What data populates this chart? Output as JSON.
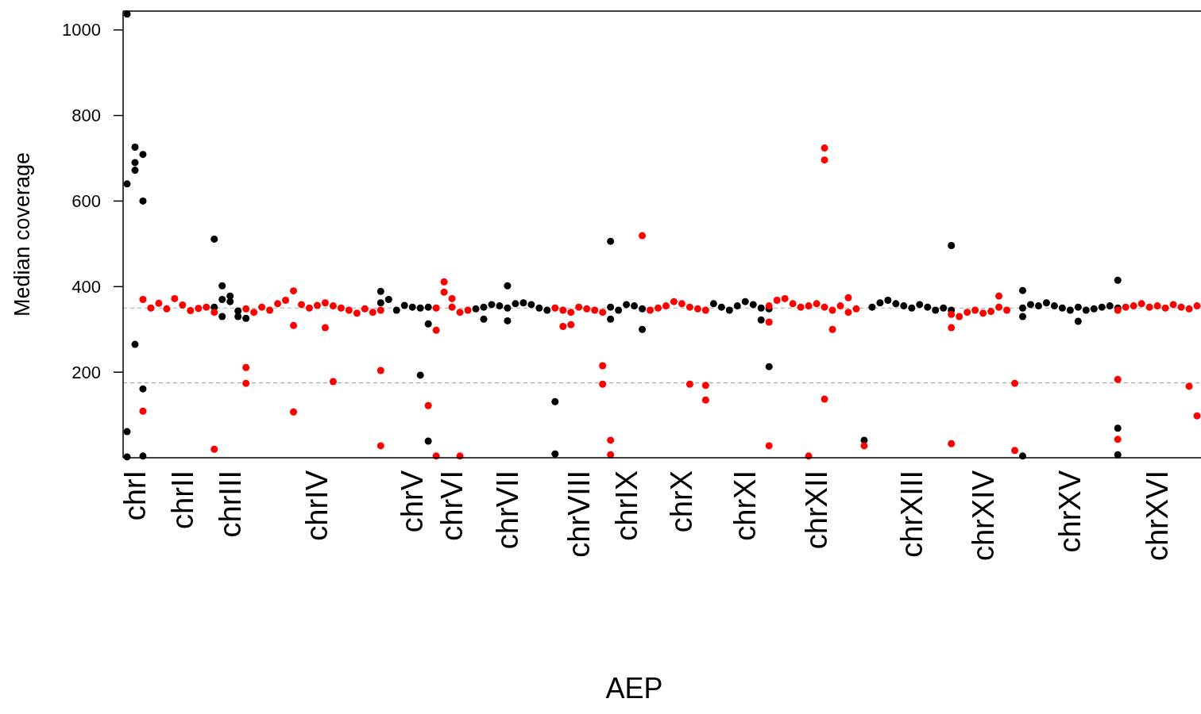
{
  "chart_data": {
    "type": "scatter",
    "xlabel": "AEP",
    "ylabel": "Median coverage",
    "marker": "circle",
    "ylim": [
      0,
      1044
    ],
    "yticks": [
      200,
      400,
      600,
      800,
      1000
    ],
    "categories": [
      null,
      "chrI",
      null,
      null,
      null,
      null,
      null,
      "chrII",
      null,
      null,
      null,
      null,
      null,
      "chrIII",
      null,
      null,
      null,
      null,
      null,
      null,
      null,
      null,
      null,
      null,
      "chrIV",
      null,
      null,
      null,
      null,
      null,
      null,
      null,
      null,
      null,
      null,
      null,
      "chrV",
      null,
      null,
      null,
      null,
      "chrVI",
      null,
      null,
      null,
      null,
      null,
      null,
      "chrVII",
      null,
      null,
      null,
      null,
      null,
      null,
      null,
      null,
      "chrVIII",
      null,
      null,
      null,
      null,
      null,
      "chrIX",
      null,
      null,
      null,
      null,
      null,
      null,
      "chrX",
      null,
      null,
      null,
      null,
      null,
      null,
      null,
      "chrXI",
      null,
      null,
      null,
      null,
      null,
      null,
      null,
      null,
      "chrXII",
      null,
      null,
      null,
      null,
      null,
      null,
      null,
      null,
      null,
      null,
      null,
      "chrXIII",
      null,
      null,
      null,
      null,
      null,
      null,
      null,
      null,
      "chrXIV",
      null,
      null,
      null,
      null,
      null,
      null,
      null,
      null,
      null,
      null,
      "chrXV",
      null,
      null,
      null,
      null,
      null,
      null,
      null,
      null,
      null,
      null,
      "chrXVI",
      null,
      null,
      null,
      null,
      null
    ],
    "ref_lines": [
      {
        "axis": "y",
        "value": 350,
        "color": "#aaaaaa",
        "line_style": "dashed"
      },
      {
        "axis": "y",
        "value": 175,
        "color": "#aaaaaa",
        "line_style": "dashed"
      }
    ],
    "series": [
      {
        "color": "#000000",
        "values": [
          640,
          690,
          709,
          null,
          null,
          null,
          null,
          null,
          null,
          null,
          null,
          352,
          370,
          378,
          343,
          326,
          null,
          null,
          null,
          null,
          null,
          null,
          null,
          null,
          null,
          null,
          null,
          null,
          null,
          null,
          null,
          null,
          362,
          370,
          345,
          356,
          352,
          350,
          352,
          null,
          null,
          null,
          null,
          null,
          348,
          352,
          358,
          355,
          350,
          360,
          362,
          358,
          350,
          345,
          131,
          null,
          null,
          null,
          null,
          null,
          null,
          352,
          345,
          358,
          355,
          348,
          null,
          null,
          null,
          null,
          null,
          null,
          null,
          null,
          360,
          352,
          345,
          355,
          365,
          358,
          350,
          348,
          null,
          null,
          null,
          null,
          null,
          null,
          null,
          null,
          null,
          null,
          null,
          41,
          352,
          362,
          368,
          360,
          355,
          350,
          358,
          352,
          345,
          350,
          345,
          null,
          null,
          null,
          null,
          null,
          null,
          null,
          null,
          350,
          358,
          355,
          362,
          355,
          350,
          345,
          352,
          345,
          348,
          352,
          355,
          350,
          null,
          null,
          null,
          null,
          null,
          null,
          null,
          null,
          null,
          null
        ]
      },
      {
        "color": "#000000",
        "values": [
          1037,
          726,
          600,
          null,
          null,
          null,
          null,
          null,
          null,
          null,
          null,
          511,
          402,
          365,
          330,
          null,
          null,
          null,
          null,
          null,
          null,
          null,
          null,
          null,
          null,
          null,
          null,
          null,
          null,
          null,
          null,
          null,
          389,
          null,
          null,
          null,
          null,
          193,
          313,
          null,
          null,
          null,
          null,
          null,
          null,
          324,
          null,
          null,
          402,
          null,
          null,
          null,
          null,
          null,
          9,
          null,
          null,
          null,
          null,
          null,
          null,
          506,
          null,
          null,
          null,
          300,
          null,
          null,
          null,
          null,
          null,
          null,
          null,
          null,
          null,
          null,
          null,
          null,
          null,
          null,
          322,
          213,
          null,
          null,
          null,
          null,
          null,
          null,
          null,
          null,
          null,
          null,
          null,
          null,
          null,
          null,
          null,
          null,
          null,
          null,
          null,
          null,
          null,
          null,
          496,
          null,
          null,
          null,
          null,
          null,
          null,
          null,
          null,
          391,
          null,
          null,
          null,
          null,
          null,
          null,
          319,
          null,
          null,
          null,
          null,
          415,
          null,
          null,
          null,
          null,
          null,
          null,
          null,
          null,
          null,
          null
        ]
      },
      {
        "color": "#000000",
        "values": [
          61,
          265,
          161,
          null,
          null,
          null,
          null,
          null,
          null,
          null,
          null,
          null,
          330,
          null,
          null,
          null,
          null,
          null,
          null,
          null,
          null,
          null,
          null,
          null,
          null,
          null,
          null,
          null,
          null,
          null,
          null,
          null,
          null,
          null,
          null,
          null,
          null,
          null,
          39,
          null,
          null,
          null,
          null,
          null,
          null,
          null,
          null,
          null,
          320,
          null,
          null,
          null,
          null,
          null,
          null,
          null,
          null,
          null,
          null,
          null,
          null,
          324,
          null,
          null,
          null,
          null,
          null,
          null,
          null,
          null,
          null,
          null,
          null,
          null,
          null,
          null,
          null,
          null,
          null,
          null,
          null,
          null,
          null,
          null,
          null,
          null,
          null,
          null,
          null,
          null,
          null,
          null,
          null,
          null,
          null,
          null,
          null,
          null,
          null,
          null,
          null,
          null,
          null,
          null,
          null,
          null,
          null,
          null,
          null,
          null,
          null,
          null,
          null,
          330,
          null,
          null,
          null,
          null,
          null,
          null,
          null,
          null,
          null,
          null,
          null,
          69,
          null,
          null,
          null,
          null,
          null,
          null,
          null,
          null,
          null,
          null
        ]
      },
      {
        "color": "#000000",
        "values": [
          2,
          672,
          4,
          null,
          null,
          null,
          null,
          null,
          null,
          null,
          null,
          null,
          null,
          null,
          null,
          null,
          null,
          null,
          null,
          null,
          null,
          null,
          null,
          null,
          null,
          null,
          null,
          null,
          null,
          null,
          null,
          null,
          null,
          null,
          null,
          null,
          null,
          null,
          null,
          null,
          null,
          null,
          null,
          null,
          null,
          null,
          null,
          null,
          null,
          null,
          null,
          null,
          null,
          null,
          null,
          null,
          null,
          null,
          null,
          null,
          null,
          null,
          null,
          null,
          null,
          null,
          null,
          null,
          null,
          null,
          null,
          null,
          null,
          null,
          null,
          null,
          null,
          null,
          null,
          null,
          null,
          null,
          null,
          null,
          null,
          null,
          null,
          null,
          null,
          null,
          null,
          null,
          null,
          null,
          null,
          null,
          null,
          null,
          null,
          null,
          null,
          null,
          null,
          null,
          null,
          null,
          null,
          null,
          null,
          null,
          null,
          null,
          null,
          4,
          null,
          null,
          null,
          null,
          null,
          null,
          null,
          null,
          null,
          null,
          null,
          7,
          null,
          null,
          null,
          null,
          null,
          null,
          null,
          null,
          null,
          null
        ]
      },
      {
        "color": "#ff0000",
        "values": [
          null,
          null,
          370,
          350,
          361,
          348,
          372,
          357,
          344,
          349,
          352,
          340,
          null,
          null,
          null,
          348,
          340,
          352,
          345,
          360,
          368,
          390,
          358,
          350,
          356,
          362,
          355,
          350,
          345,
          338,
          348,
          340,
          345,
          null,
          null,
          null,
          null,
          null,
          null,
          350,
          387,
          372,
          340,
          345,
          null,
          null,
          null,
          null,
          null,
          null,
          null,
          null,
          null,
          null,
          350,
          345,
          340,
          352,
          348,
          345,
          340,
          null,
          null,
          null,
          null,
          519,
          345,
          350,
          355,
          365,
          360,
          352,
          348,
          345,
          null,
          null,
          null,
          null,
          null,
          null,
          null,
          355,
          368,
          372,
          360,
          352,
          355,
          360,
          352,
          345,
          355,
          340,
          348,
          28,
          null,
          null,
          null,
          null,
          null,
          null,
          null,
          null,
          null,
          null,
          335,
          330,
          340,
          345,
          338,
          342,
          352,
          345,
          174,
          null,
          null,
          null,
          null,
          null,
          null,
          null,
          null,
          null,
          null,
          null,
          null,
          345,
          352,
          355,
          360,
          352,
          355,
          350,
          358,
          352,
          348,
          355
        ]
      },
      {
        "color": "#ff0000",
        "values": [
          null,
          null,
          109,
          null,
          null,
          null,
          null,
          null,
          null,
          null,
          null,
          20,
          null,
          null,
          null,
          211,
          null,
          null,
          null,
          null,
          null,
          309,
          null,
          null,
          null,
          304,
          178,
          null,
          null,
          null,
          null,
          null,
          204,
          null,
          null,
          null,
          null,
          null,
          122,
          298,
          411,
          352,
          4,
          null,
          null,
          null,
          null,
          null,
          null,
          null,
          null,
          null,
          null,
          null,
          null,
          307,
          311,
          null,
          null,
          null,
          215,
          41,
          null,
          null,
          null,
          null,
          null,
          null,
          null,
          null,
          null,
          172,
          null,
          169,
          null,
          null,
          null,
          null,
          null,
          null,
          null,
          317,
          null,
          null,
          null,
          null,
          4,
          null,
          724,
          300,
          null,
          374,
          null,
          null,
          null,
          null,
          null,
          null,
          null,
          null,
          null,
          null,
          null,
          null,
          304,
          null,
          null,
          null,
          null,
          null,
          378,
          null,
          17,
          null,
          null,
          null,
          null,
          null,
          null,
          null,
          null,
          null,
          null,
          null,
          null,
          183,
          null,
          null,
          null,
          null,
          null,
          null,
          null,
          null,
          167,
          98
        ]
      },
      {
        "color": "#ff0000",
        "values": [
          null,
          null,
          null,
          null,
          null,
          null,
          null,
          null,
          null,
          null,
          null,
          null,
          null,
          null,
          null,
          174,
          null,
          null,
          null,
          null,
          null,
          107,
          null,
          null,
          null,
          null,
          null,
          null,
          null,
          null,
          null,
          null,
          28,
          null,
          null,
          null,
          null,
          null,
          null,
          4,
          null,
          null,
          null,
          null,
          null,
          null,
          null,
          null,
          null,
          null,
          null,
          null,
          null,
          null,
          null,
          null,
          null,
          null,
          null,
          null,
          172,
          7,
          null,
          null,
          null,
          null,
          null,
          null,
          null,
          null,
          null,
          null,
          null,
          135,
          null,
          null,
          null,
          null,
          null,
          null,
          null,
          28,
          null,
          null,
          null,
          null,
          null,
          null,
          696,
          null,
          null,
          null,
          null,
          null,
          null,
          null,
          null,
          null,
          null,
          null,
          null,
          null,
          null,
          null,
          33,
          null,
          null,
          null,
          null,
          null,
          null,
          null,
          null,
          null,
          null,
          null,
          null,
          null,
          null,
          null,
          null,
          null,
          null,
          null,
          null,
          43,
          null,
          null,
          null,
          null,
          null,
          null,
          null,
          null,
          null,
          null
        ]
      },
      {
        "color": "#ff0000",
        "values": [
          null,
          null,
          null,
          null,
          null,
          null,
          null,
          null,
          null,
          null,
          null,
          null,
          null,
          null,
          null,
          null,
          null,
          null,
          null,
          null,
          null,
          null,
          null,
          null,
          null,
          null,
          null,
          null,
          null,
          null,
          null,
          null,
          null,
          null,
          null,
          null,
          null,
          null,
          null,
          null,
          null,
          null,
          null,
          null,
          null,
          null,
          null,
          null,
          null,
          null,
          null,
          null,
          null,
          null,
          null,
          null,
          null,
          null,
          null,
          null,
          null,
          null,
          null,
          null,
          null,
          null,
          null,
          null,
          null,
          null,
          null,
          null,
          null,
          null,
          null,
          null,
          null,
          null,
          null,
          null,
          null,
          null,
          null,
          null,
          null,
          null,
          null,
          null,
          137,
          null,
          null,
          null,
          null,
          null,
          null,
          null,
          null,
          null,
          null,
          null,
          null,
          null,
          null,
          null,
          null,
          null,
          null,
          null,
          null,
          null,
          null,
          null,
          null,
          null,
          null,
          null,
          null,
          null,
          null,
          null,
          null,
          null,
          null,
          null,
          null,
          null,
          null,
          null,
          null,
          null,
          null,
          null,
          null,
          null,
          null,
          null
        ]
      }
    ]
  }
}
